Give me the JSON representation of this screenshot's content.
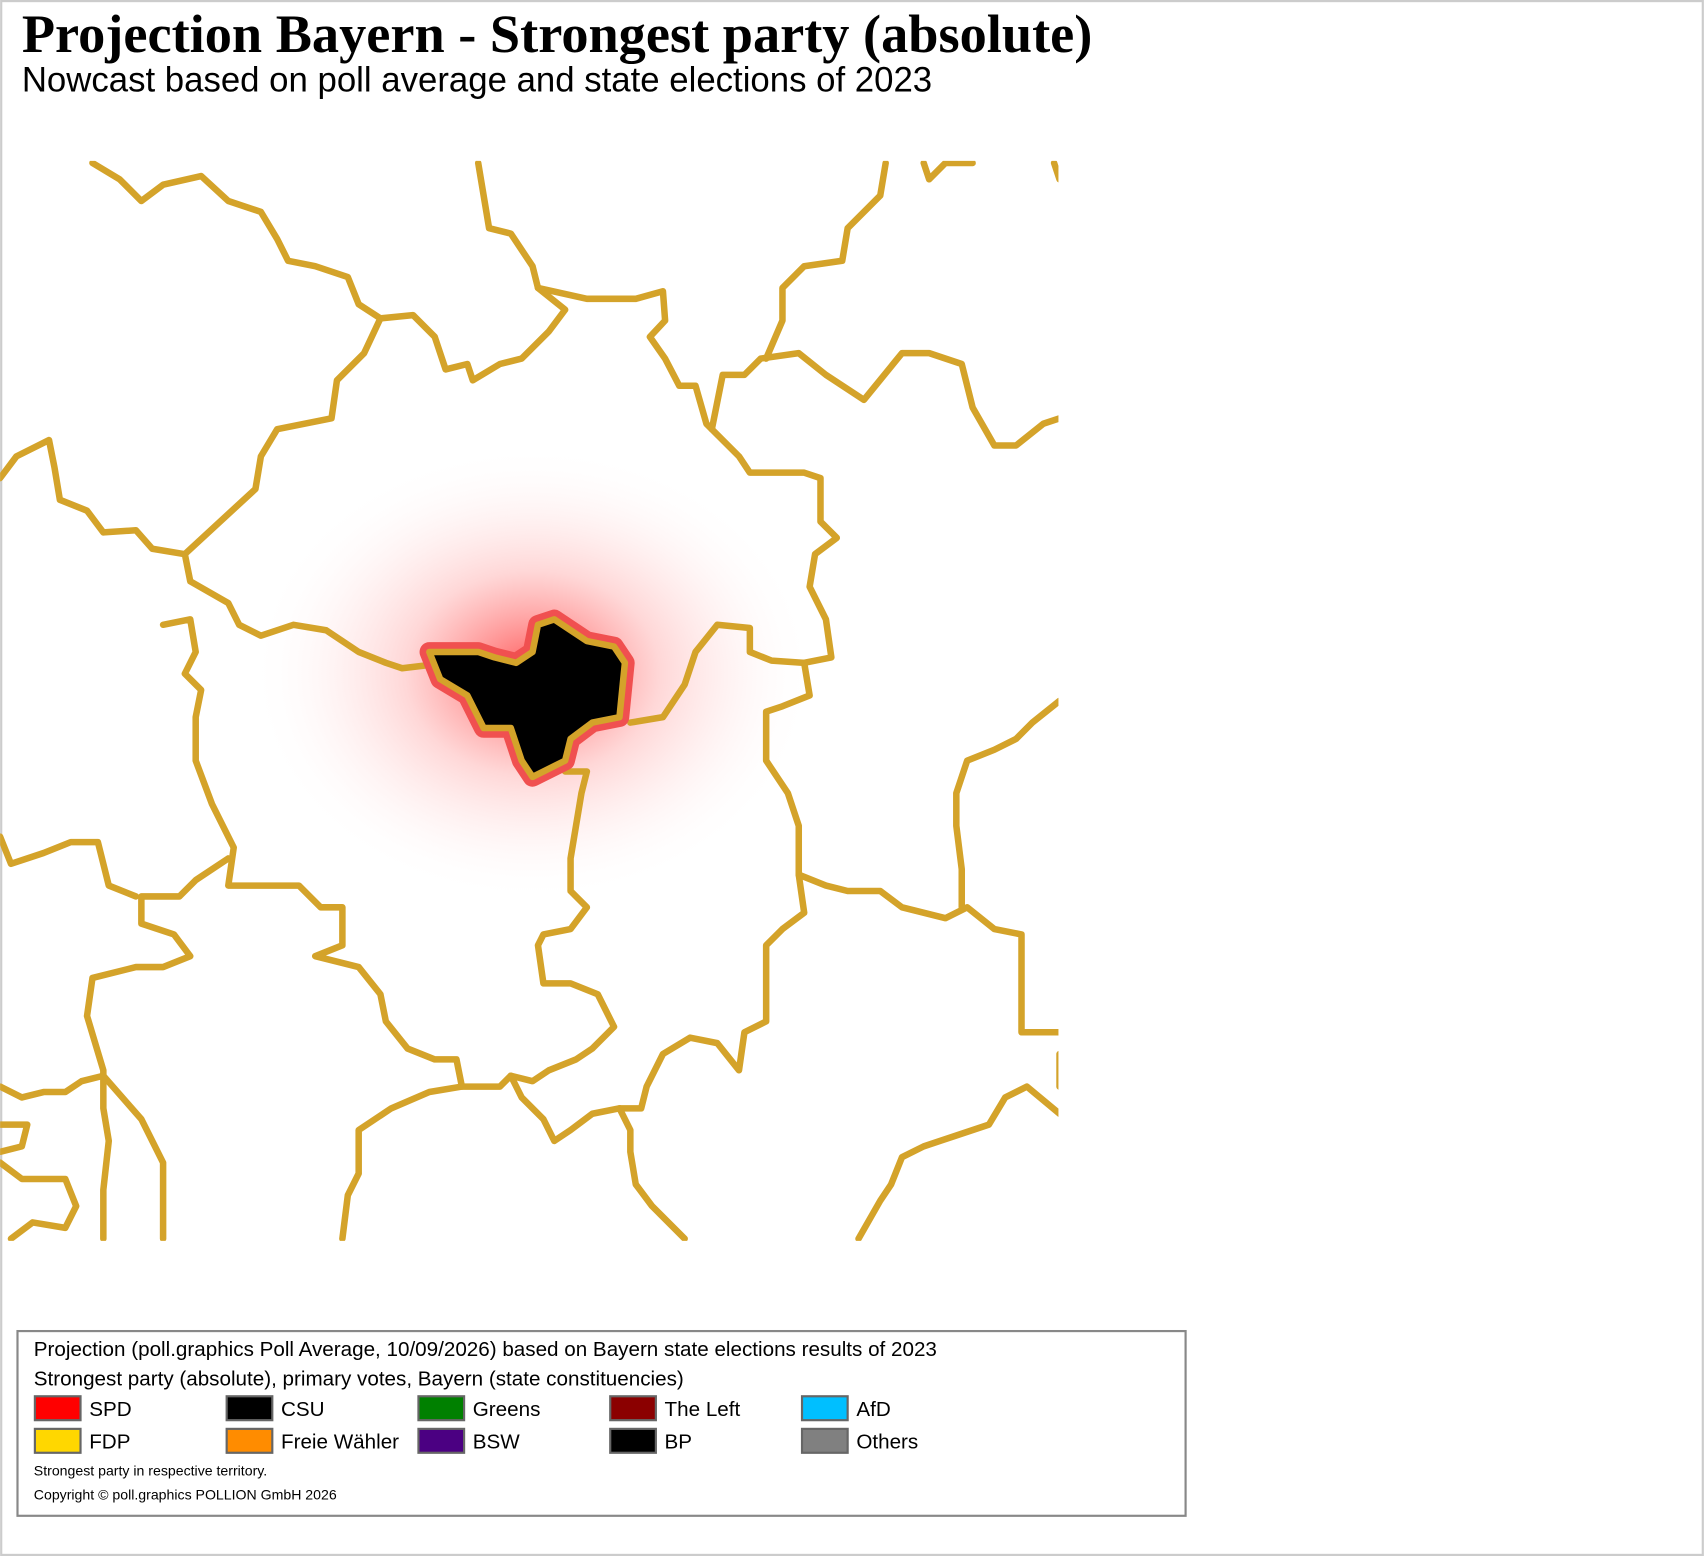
{
  "header": {
    "title": "Projection Bayern - Strongest party (absolute)",
    "subtitle": "Nowcast based on poll average and state elections of 2023"
  },
  "legend": {
    "lines": [
      "Projection (poll.graphics Poll Average, 10/09/2026) based on Bayern state elections results of 2023",
      "Strongest party (absolute), primary votes, Bayern (state constituencies)"
    ],
    "items": [
      {
        "name": "SPD",
        "color": "#ff0000"
      },
      {
        "name": "CSU",
        "color": "#000000"
      },
      {
        "name": "Greens",
        "color": "#008000"
      },
      {
        "name": "The Left",
        "color": "#8b0000"
      },
      {
        "name": "AfD",
        "color": "#00bfff"
      },
      {
        "name": "FDP",
        "color": "#ffd700"
      },
      {
        "name": "Freie Wähler",
        "color": "#ff8c00"
      },
      {
        "name": "BSW",
        "color": "#4b0082"
      },
      {
        "name": "BP",
        "color": "#000000"
      },
      {
        "name": "Others",
        "color": "#808080"
      }
    ],
    "notes": [
      "Strongest party in respective territory.",
      "Copyright © poll.graphics POLLION GmbH 2026"
    ]
  }
}
